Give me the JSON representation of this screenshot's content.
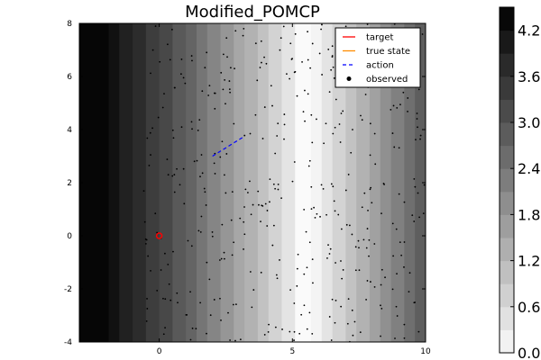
{
  "chart_data": {
    "type": "heatmap",
    "title": "Modified_POMCP",
    "xlim": [
      -3,
      10
    ],
    "ylim": [
      -4,
      8
    ],
    "xticks": [
      0,
      5,
      10
    ],
    "yticks": [
      8,
      6,
      4,
      2,
      0,
      -2,
      -4
    ],
    "grid": false,
    "legend_position": "top-right",
    "background": {
      "description_bands_x": [
        -3,
        -1.9,
        -1.5,
        -1.0,
        -0.5,
        0.0,
        0.5,
        1.0,
        1.4,
        1.8,
        2.3,
        2.8,
        3.2,
        3.7,
        4.1,
        4.6,
        5.1,
        5.7,
        6.1,
        6.5,
        7.0,
        7.4,
        7.9,
        8.3,
        8.7,
        9.2,
        9.6,
        10
      ],
      "band_values": [
        4.4,
        4.2,
        3.9,
        3.7,
        3.4,
        3.2,
        2.9,
        2.7,
        2.4,
        2.1,
        1.8,
        1.5,
        1.3,
        1.0,
        0.7,
        0.4,
        0.0,
        0.1,
        0.4,
        0.7,
        1.0,
        1.3,
        1.6,
        1.9,
        2.2,
        2.5,
        2.8
      ]
    },
    "colorbar": {
      "ticks": [
        "4.2",
        "3.6",
        "3.0",
        "2.4",
        "1.8",
        "1.2",
        "0.6",
        "0.0"
      ],
      "tick_values": [
        4.2,
        3.6,
        3.0,
        2.4,
        1.8,
        1.2,
        0.6,
        0.0
      ],
      "min": 0.0,
      "max": 4.5,
      "levels": 15
    },
    "series": [
      {
        "name": "target",
        "color": "#ff0000",
        "marker": "circle",
        "points": [
          [
            0.0,
            0.0
          ]
        ]
      },
      {
        "name": "true state",
        "color": "#ff8c00",
        "marker": "line",
        "points": []
      },
      {
        "name": "action",
        "color": "#0000ff",
        "marker": "dash",
        "points": [
          [
            2.0,
            3.0
          ],
          [
            3.2,
            3.75
          ]
        ]
      },
      {
        "name": "observed",
        "color": "#000000",
        "marker": "dot",
        "count": 420,
        "xrange": [
          -0.6,
          10
        ],
        "yrange": [
          -4,
          8
        ]
      }
    ]
  }
}
